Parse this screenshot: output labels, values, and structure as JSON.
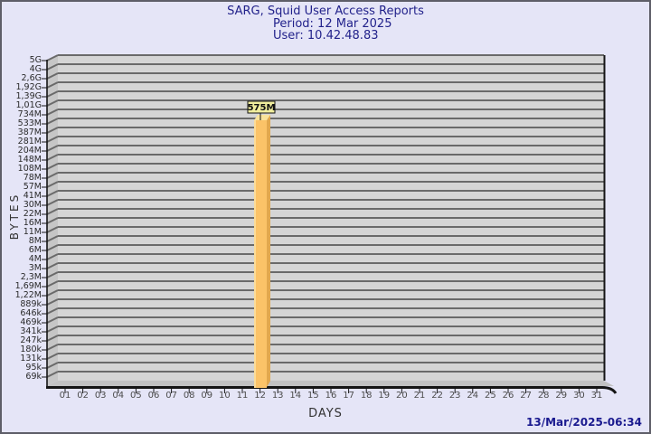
{
  "header": {
    "title": "SARG, Squid User Access Reports",
    "period": "Period: 12 Mar 2025",
    "user": "User: 10.42.48.83"
  },
  "footer": {
    "timestamp": "13/Mar/2025-06:34"
  },
  "chart_data": {
    "type": "bar",
    "title": "SARG, Squid User Access Reports",
    "subtitle": [
      "Period: 12 Mar 2025",
      "User: 10.42.48.83"
    ],
    "xlabel": "DAYS",
    "ylabel": "BYTES",
    "y_scale": "logarithmic",
    "ylim": [
      "69k",
      "5G"
    ],
    "grid": "horizontal",
    "style": "3d-bar",
    "y_axis": {
      "tick_labels": [
        "5G",
        "4G",
        "2,6G",
        "1,92G",
        "1,39G",
        "1,01G",
        "734M",
        "533M",
        "387M",
        "281M",
        "204M",
        "148M",
        "108M",
        "78M",
        "57M",
        "41M",
        "30M",
        "22M",
        "16M",
        "11M",
        "8M",
        "6M",
        "4M",
        "3M",
        "2,3M",
        "1,69M",
        "1,22M",
        "889k",
        "646k",
        "469k",
        "341k",
        "247k",
        "180k",
        "131k",
        "95k",
        "69k"
      ]
    },
    "x_axis": {
      "tick_labels": [
        "01",
        "02",
        "03",
        "04",
        "05",
        "06",
        "07",
        "08",
        "09",
        "10",
        "11",
        "12",
        "13",
        "14",
        "15",
        "16",
        "17",
        "18",
        "19",
        "20",
        "21",
        "22",
        "23",
        "24",
        "25",
        "26",
        "27",
        "28",
        "29",
        "30",
        "31"
      ]
    },
    "categories": [
      "01",
      "02",
      "03",
      "04",
      "05",
      "06",
      "07",
      "08",
      "09",
      "10",
      "11",
      "12",
      "13",
      "14",
      "15",
      "16",
      "17",
      "18",
      "19",
      "20",
      "21",
      "22",
      "23",
      "24",
      "25",
      "26",
      "27",
      "28",
      "29",
      "30",
      "31"
    ],
    "values": [
      null,
      null,
      null,
      null,
      null,
      null,
      null,
      null,
      null,
      null,
      null,
      "575M",
      null,
      null,
      null,
      null,
      null,
      null,
      null,
      null,
      null,
      null,
      null,
      null,
      null,
      null,
      null,
      null,
      null,
      null,
      null
    ],
    "annotation": {
      "day": "12",
      "label": "575M"
    }
  },
  "colors": {
    "page_bg": "#E5E5F7",
    "border": "#5E5E68",
    "title_text": "#22228B",
    "timestamp_text": "#1A1A8F",
    "plot_bg": "#D5D5D5",
    "side_wall": "#C6C6C6",
    "floor": "#C2C2C2",
    "grid": "#6A6A6A",
    "frame": "#151515",
    "bar_front": "#FBC368",
    "bar_side": "#E2A84E",
    "bar_top": "#F9E39B",
    "bar_highlight": "#FDDC96",
    "annotation_bg": "#F0ED9D"
  }
}
